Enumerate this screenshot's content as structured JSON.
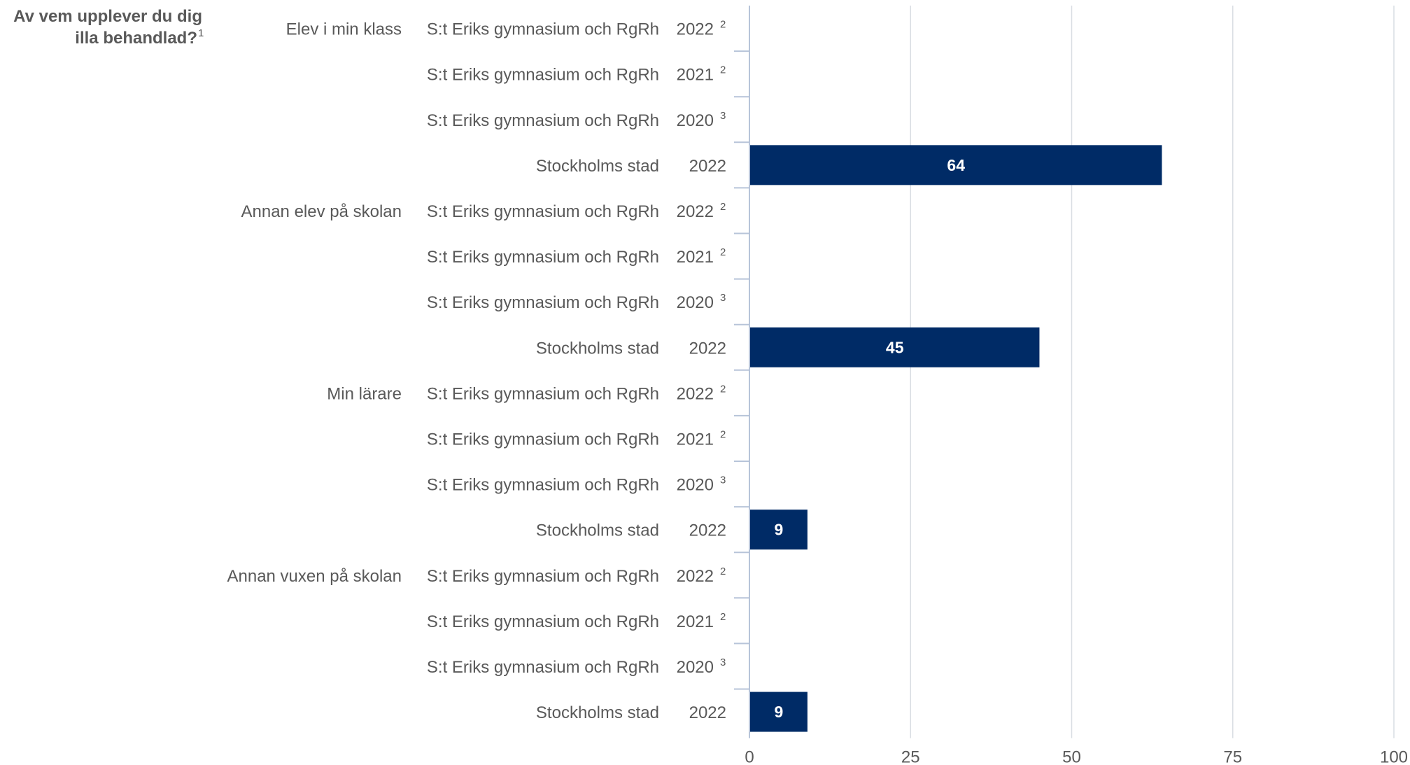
{
  "chart_data": {
    "type": "bar",
    "orientation": "horizontal",
    "question": [
      "Av vem upplever du dig",
      "illa behandlad?",
      "1"
    ],
    "groups": [
      {
        "label": "Elev i min klass",
        "rows": [
          {
            "unit": "S:t Eriks gymnasium och RgRh",
            "year": "2022",
            "note": "2",
            "value": null
          },
          {
            "unit": "S:t Eriks gymnasium och RgRh",
            "year": "2021",
            "note": "2",
            "value": null
          },
          {
            "unit": "S:t Eriks gymnasium och RgRh",
            "year": "2020",
            "note": "3",
            "value": null
          },
          {
            "unit": "Stockholms stad",
            "year": "2022",
            "note": "",
            "value": 64
          }
        ]
      },
      {
        "label": "Annan elev på skolan",
        "rows": [
          {
            "unit": "S:t Eriks gymnasium och RgRh",
            "year": "2022",
            "note": "2",
            "value": null
          },
          {
            "unit": "S:t Eriks gymnasium och RgRh",
            "year": "2021",
            "note": "2",
            "value": null
          },
          {
            "unit": "S:t Eriks gymnasium och RgRh",
            "year": "2020",
            "note": "3",
            "value": null
          },
          {
            "unit": "Stockholms stad",
            "year": "2022",
            "note": "",
            "value": 45
          }
        ]
      },
      {
        "label": "Min lärare",
        "rows": [
          {
            "unit": "S:t Eriks gymnasium och RgRh",
            "year": "2022",
            "note": "2",
            "value": null
          },
          {
            "unit": "S:t Eriks gymnasium och RgRh",
            "year": "2021",
            "note": "2",
            "value": null
          },
          {
            "unit": "S:t Eriks gymnasium och RgRh",
            "year": "2020",
            "note": "3",
            "value": null
          },
          {
            "unit": "Stockholms stad",
            "year": "2022",
            "note": "",
            "value": 9
          }
        ]
      },
      {
        "label": "Annan vuxen på skolan",
        "rows": [
          {
            "unit": "S:t Eriks gymnasium och RgRh",
            "year": "2022",
            "note": "2",
            "value": null
          },
          {
            "unit": "S:t Eriks gymnasium och RgRh",
            "year": "2021",
            "note": "2",
            "value": null
          },
          {
            "unit": "S:t Eriks gymnasium och RgRh",
            "year": "2020",
            "note": "3",
            "value": null
          },
          {
            "unit": "Stockholms stad",
            "year": "2022",
            "note": "",
            "value": 9
          }
        ]
      }
    ],
    "xlim": [
      0,
      100
    ],
    "xticks": [
      0,
      25,
      50,
      75,
      100
    ],
    "grid": true,
    "colors": {
      "bar": "#002b66",
      "grid": "#d9dde3",
      "axis": "#b7c4d9",
      "text": "#595959",
      "value_text": "#ffffff"
    }
  }
}
